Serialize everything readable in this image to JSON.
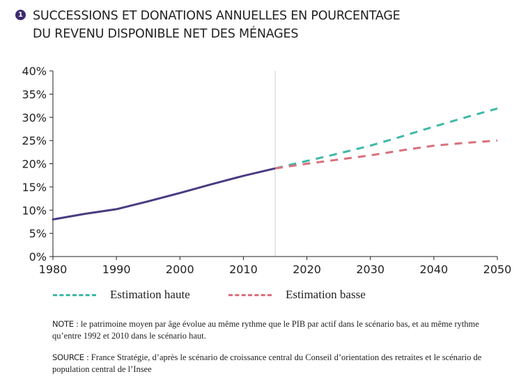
{
  "header": {
    "badge": "1",
    "title_line1": "SUCCESSIONS ET DONATIONS ANNUELLES EN POURCENTAGE",
    "title_line2": "DU REVENU DISPONIBLE NET DES MÉNAGES"
  },
  "colors": {
    "history": "#4a3a82",
    "high": "#3fb8a8",
    "low": "#d9707c",
    "axis": "#222222",
    "divider": "#cccccc"
  },
  "chart_data": {
    "type": "line",
    "title": "SUCCESSIONS ET DONATIONS ANNUELLES EN POURCENTAGE DU REVENU DISPONIBLE NET DES MÉNAGES",
    "xlabel": "",
    "ylabel": "",
    "xlim": [
      1980,
      2050
    ],
    "ylim": [
      0,
      40
    ],
    "x_ticks": [
      1980,
      1990,
      2000,
      2010,
      2020,
      2030,
      2040,
      2050
    ],
    "y_ticks": [
      0,
      5,
      10,
      15,
      20,
      25,
      30,
      35,
      40
    ],
    "y_tick_labels": [
      "0%",
      "5%",
      "10%",
      "15%",
      "20%",
      "25%",
      "30%",
      "35%",
      "40%"
    ],
    "grid": false,
    "divider_x": 2015,
    "legend_position": "bottom",
    "series": [
      {
        "key": "history",
        "values": [
          [
            1980,
            8.0
          ],
          [
            1985,
            9.2
          ],
          [
            1990,
            10.2
          ],
          [
            1995,
            11.9
          ],
          [
            2000,
            13.7
          ],
          [
            2005,
            15.6
          ],
          [
            2010,
            17.4
          ],
          [
            2015,
            19.0
          ]
        ]
      },
      {
        "key": "high",
        "name": "Estimation haute",
        "values": [
          [
            2015,
            19.0
          ],
          [
            2020,
            20.6
          ],
          [
            2025,
            22.2
          ],
          [
            2030,
            23.9
          ],
          [
            2035,
            25.9
          ],
          [
            2040,
            28.0
          ],
          [
            2045,
            30.0
          ],
          [
            2050,
            31.9
          ]
        ]
      },
      {
        "key": "low",
        "name": "Estimation basse",
        "values": [
          [
            2015,
            19.0
          ],
          [
            2020,
            20.0
          ],
          [
            2025,
            20.9
          ],
          [
            2030,
            21.8
          ],
          [
            2035,
            22.9
          ],
          [
            2040,
            23.9
          ],
          [
            2045,
            24.5
          ],
          [
            2050,
            25.0
          ]
        ]
      }
    ]
  },
  "legend": {
    "high_label": "Estimation haute",
    "low_label": "Estimation basse"
  },
  "notes": {
    "note_key": "NOTE :",
    "note_text": "le patrimoine moyen par âge évolue au même rythme que le PIB par actif dans le scénario bas, et au même rythme qu’entre 1992 et 2010 dans le scénario haut.",
    "source_key": "SOURCE :",
    "source_text": "France Stratégie, d’après le scénario de croissance central du Conseil d’orientation des retraites et le scénario de population central de l’Insee"
  }
}
